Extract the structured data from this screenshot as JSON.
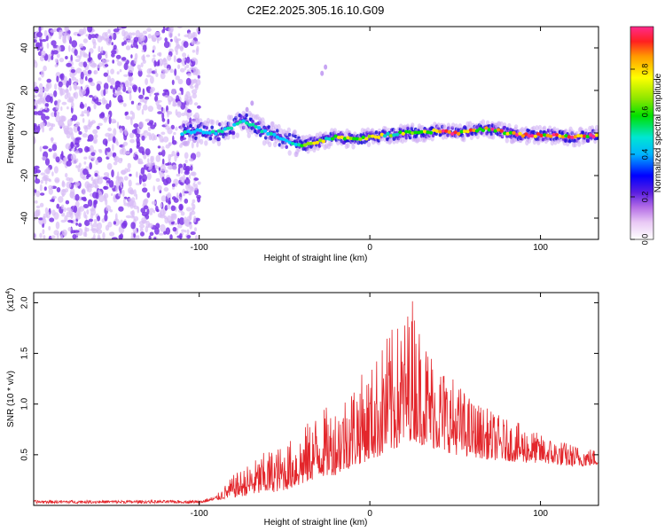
{
  "figure_title": "C2E2.2025.305.16.10.G09",
  "colors": {
    "snr_line": "#e3262b",
    "axis": "#000000",
    "noise_purple": "#7d36e6",
    "noise_light": "#d8bdf7"
  },
  "chart_data": [
    {
      "id": "spectrogram",
      "type": "heatmap",
      "title": "C2E2.2025.305.16.10.G09",
      "xlabel": "Height of straight line (km)",
      "ylabel": "Frequency (Hz)",
      "xlim": [
        -197,
        134
      ],
      "ylim": [
        -50,
        50
      ],
      "x_ticks": [
        -100,
        0,
        100
      ],
      "x_tick_labels": [
        "-100",
        "0",
        "100"
      ],
      "y_ticks": [
        -40,
        -20,
        0,
        20,
        40
      ],
      "y_tick_labels": [
        "-40",
        "-20",
        "0",
        "20",
        "40"
      ],
      "signal_track": {
        "description": "dominant frequency ridge vs height",
        "x": [
          -110,
          -100,
          -90,
          -80,
          -75,
          -70,
          -60,
          -50,
          -40,
          -30,
          -20,
          -10,
          0,
          10,
          20,
          30,
          40,
          50,
          60,
          70,
          80,
          90,
          100,
          110,
          120,
          134
        ],
        "y": [
          0,
          1,
          0,
          3,
          6,
          4,
          0,
          -3,
          -6,
          -4,
          -2,
          -3,
          -2,
          -1,
          0,
          0,
          1,
          0,
          1,
          2,
          0,
          -1,
          -1,
          -1,
          -2,
          -1
        ]
      },
      "noise_region_x": [
        -197,
        -100
      ],
      "colorbar": {
        "label": "Normalized spectral amplitude",
        "range": [
          0.0,
          1.0
        ],
        "ticks": [
          0.0,
          0.2,
          0.4,
          0.6,
          0.8
        ],
        "tick_labels": [
          "0.0",
          "0.2",
          "0.4",
          "0.6",
          "0.8"
        ]
      }
    },
    {
      "id": "snr",
      "type": "line",
      "xlabel": "Height of straight line (km)",
      "ylabel": "SNR (10 * v/v)",
      "y_multiplier": "(x10",
      "y_multiplier_exp": "4",
      "y_multiplier_close": ")",
      "xlim": [
        -197,
        134
      ],
      "ylim": [
        0,
        2.1
      ],
      "x_ticks": [
        -100,
        0,
        100
      ],
      "x_tick_labels": [
        "-100",
        "0",
        "100"
      ],
      "y_ticks": [
        0.5,
        1.0,
        1.5,
        2.0
      ],
      "y_tick_labels": [
        "0.5",
        "1.0",
        "1.5",
        "2.0"
      ],
      "envelope": {
        "description": "approximate upper envelope of the noisy SNR trace (units x10^4)",
        "x": [
          -197,
          -100,
          -90,
          -80,
          -70,
          -60,
          -50,
          -40,
          -30,
          -20,
          -10,
          0,
          10,
          20,
          25,
          30,
          40,
          50,
          60,
          70,
          80,
          90,
          100,
          110,
          120,
          134
        ],
        "y": [
          0.04,
          0.05,
          0.1,
          0.3,
          0.42,
          0.55,
          0.6,
          0.75,
          0.95,
          1.0,
          1.25,
          1.35,
          1.7,
          1.85,
          2.1,
          1.75,
          1.45,
          1.25,
          1.05,
          0.95,
          0.85,
          0.8,
          0.7,
          0.65,
          0.6,
          0.55
        ]
      },
      "baseline": {
        "x": [
          -197,
          -100,
          -90,
          -80,
          -70,
          -60,
          -50,
          -40,
          -30,
          -20,
          -10,
          0,
          10,
          20,
          25,
          30,
          40,
          50,
          60,
          70,
          80,
          90,
          100,
          110,
          120,
          134
        ],
        "y": [
          0.02,
          0.02,
          0.05,
          0.08,
          0.1,
          0.12,
          0.15,
          0.2,
          0.28,
          0.3,
          0.38,
          0.45,
          0.5,
          0.6,
          0.65,
          0.6,
          0.55,
          0.5,
          0.48,
          0.45,
          0.44,
          0.42,
          0.42,
          0.4,
          0.38,
          0.4
        ]
      }
    }
  ]
}
